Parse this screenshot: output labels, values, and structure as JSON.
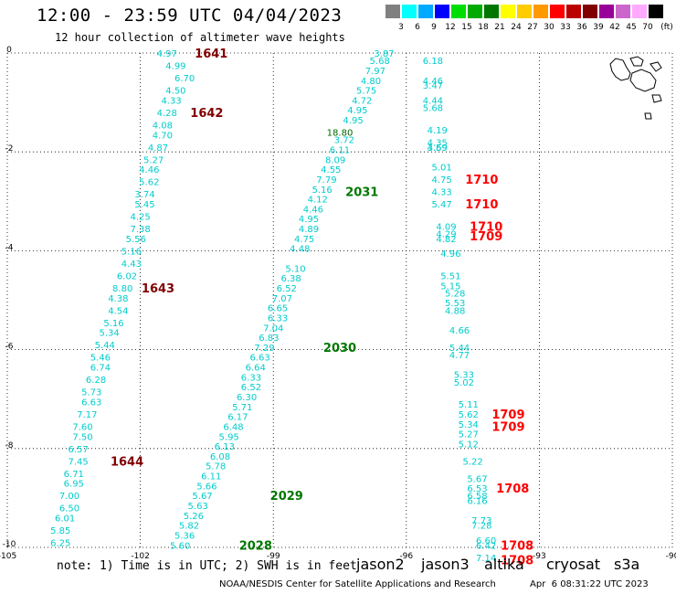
{
  "header": {
    "title": "12:00 - 23:59 UTC 04/04/2023",
    "subtitle": "12 hour collection of altimeter wave heights"
  },
  "legend": {
    "unit": "(ft)",
    "bins": [
      {
        "label": "3",
        "color": "#808080"
      },
      {
        "label": "6",
        "color": "#00ffff"
      },
      {
        "label": "9",
        "color": "#00aaff"
      },
      {
        "label": "12",
        "color": "#0000ff"
      },
      {
        "label": "15",
        "color": "#00dd00"
      },
      {
        "label": "18",
        "color": "#00aa00"
      },
      {
        "label": "21",
        "color": "#007700"
      },
      {
        "label": "24",
        "color": "#ffff00"
      },
      {
        "label": "27",
        "color": "#ffcc00"
      },
      {
        "label": "30",
        "color": "#ff9900"
      },
      {
        "label": "33",
        "color": "#ff0000"
      },
      {
        "label": "36",
        "color": "#bb0000"
      },
      {
        "label": "39",
        "color": "#800000"
      },
      {
        "label": "42",
        "color": "#990099"
      },
      {
        "label": "45",
        "color": "#cc66cc"
      },
      {
        "label": "70",
        "color": "#ffaaff"
      },
      {
        "label": "",
        "color": "#000000"
      }
    ]
  },
  "axes": {
    "x_ticks": [
      "-105",
      "-102",
      "-99",
      "-96",
      "-93",
      "-90"
    ],
    "y_ticks": [
      "0",
      "-2",
      "-4",
      "-6",
      "-8",
      "-10"
    ],
    "x_range": [
      -105,
      -90
    ],
    "y_range": [
      -10,
      0
    ]
  },
  "chart_data": {
    "type": "scatter",
    "value_color": "#00cccc",
    "tracks": [
      {
        "points": [
          [
            -101.4,
            0.0,
            "4.97"
          ],
          [
            -101.2,
            -0.25,
            "4.99"
          ],
          [
            -101.0,
            -0.5,
            "6.70"
          ],
          [
            -101.2,
            -0.75,
            "4.50"
          ],
          [
            -101.3,
            -0.95,
            "4.33"
          ],
          [
            -101.4,
            -1.2,
            "4.28"
          ],
          [
            -101.5,
            -1.45,
            "4.08"
          ],
          [
            -101.5,
            -1.65,
            "4.70"
          ],
          [
            -101.6,
            -1.9,
            "4.87"
          ],
          [
            -101.7,
            -2.15,
            "5.27"
          ],
          [
            -101.8,
            -2.35,
            "4.46"
          ],
          [
            -101.8,
            -2.6,
            "5.62"
          ],
          [
            -101.9,
            -2.85,
            "3.74"
          ],
          [
            -101.9,
            -3.05,
            "5.45"
          ],
          [
            -102.0,
            -3.3,
            "4.25"
          ],
          [
            -102.0,
            -3.55,
            "7.38"
          ],
          [
            -102.1,
            -3.75,
            "5.56"
          ],
          [
            -102.2,
            -4.0,
            "5.16"
          ],
          [
            -102.2,
            -4.25,
            "4.43"
          ],
          [
            -102.3,
            -4.5,
            "6.02"
          ],
          [
            -102.4,
            -4.75,
            "8.80"
          ],
          [
            -102.5,
            -4.95,
            "4.38"
          ],
          [
            -102.5,
            -5.2,
            "4.54"
          ],
          [
            -102.6,
            -5.45,
            "5.16"
          ],
          [
            -102.7,
            -5.65,
            "5.34"
          ],
          [
            -102.8,
            -5.9,
            "5.44"
          ],
          [
            -102.9,
            -6.15,
            "5.46"
          ],
          [
            -102.9,
            -6.35,
            "6.74"
          ],
          [
            -103.0,
            -6.6,
            "6.28"
          ],
          [
            -103.1,
            -6.85,
            "5.73"
          ],
          [
            -103.1,
            -7.05,
            "6.63"
          ],
          [
            -103.2,
            -7.3,
            "7.17"
          ],
          [
            -103.3,
            -7.55,
            "7.60"
          ],
          [
            -103.3,
            -7.75,
            "7.50"
          ],
          [
            -103.4,
            -8.0,
            "6.57"
          ],
          [
            -103.4,
            -8.25,
            "7.45"
          ],
          [
            -103.5,
            -8.5,
            "6.71"
          ],
          [
            -103.5,
            -8.7,
            "6.95"
          ],
          [
            -103.6,
            -8.95,
            "7.00"
          ],
          [
            -103.6,
            -9.2,
            "6.50"
          ],
          [
            -103.7,
            -9.4,
            "6.01"
          ],
          [
            -103.8,
            -9.65,
            "5.85"
          ],
          [
            -103.8,
            -9.9,
            "6.25"
          ]
        ]
      },
      {
        "points": [
          [
            -96.5,
            0.0,
            "3.87"
          ],
          [
            -96.6,
            -0.15,
            "5.68"
          ],
          [
            -96.7,
            -0.35,
            "7.97"
          ],
          [
            -96.8,
            -0.55,
            "4.80"
          ],
          [
            -96.9,
            -0.75,
            "5.75"
          ],
          [
            -97.0,
            -0.95,
            "4.72"
          ],
          [
            -97.1,
            -1.15,
            "4.95"
          ],
          [
            -97.2,
            -1.35,
            "4.95"
          ],
          [
            -97.4,
            -1.75,
            "3.72"
          ],
          [
            -97.5,
            -1.95,
            "6.11"
          ],
          [
            -97.6,
            -2.15,
            "8.09"
          ],
          [
            -97.7,
            -2.35,
            "4.55"
          ],
          [
            -97.8,
            -2.55,
            "7.79"
          ],
          [
            -97.9,
            -2.75,
            "5.16"
          ],
          [
            -98.0,
            -2.95,
            "4.12"
          ],
          [
            -98.1,
            -3.15,
            "4.46"
          ],
          [
            -98.2,
            -3.35,
            "4.95"
          ],
          [
            -98.2,
            -3.55,
            "4.89"
          ],
          [
            -98.3,
            -3.75,
            "4.75"
          ],
          [
            -98.4,
            -3.95,
            "4.48"
          ],
          [
            -98.5,
            -4.35,
            "5.10"
          ],
          [
            -98.6,
            -4.55,
            "6.38"
          ],
          [
            -98.7,
            -4.75,
            "6.52"
          ],
          [
            -98.8,
            -4.95,
            "7.07"
          ],
          [
            -98.9,
            -5.15,
            "6.65"
          ],
          [
            -98.9,
            -5.35,
            "6.33"
          ],
          [
            -99.0,
            -5.55,
            "7.04"
          ],
          [
            -99.1,
            -5.75,
            "6.83"
          ],
          [
            -99.2,
            -5.95,
            "7.29"
          ],
          [
            -99.3,
            -6.15,
            "6.63"
          ],
          [
            -99.4,
            -6.35,
            "6.64"
          ],
          [
            -99.5,
            -6.55,
            "6.33"
          ],
          [
            -99.5,
            -6.75,
            "6.52"
          ],
          [
            -99.6,
            -6.95,
            "6.30"
          ],
          [
            -99.7,
            -7.15,
            "5.71"
          ],
          [
            -99.8,
            -7.35,
            "6.17"
          ],
          [
            -99.9,
            -7.55,
            "6.48"
          ],
          [
            -100.0,
            -7.75,
            "5.95"
          ],
          [
            -100.1,
            -7.95,
            "6.13"
          ],
          [
            -100.2,
            -8.15,
            "6.08"
          ],
          [
            -100.3,
            -8.35,
            "5.78"
          ],
          [
            -100.4,
            -8.55,
            "6.11"
          ],
          [
            -100.5,
            -8.75,
            "5.66"
          ],
          [
            -100.6,
            -8.95,
            "5.67"
          ],
          [
            -100.7,
            -9.15,
            "5.63"
          ],
          [
            -100.8,
            -9.35,
            "5.26"
          ],
          [
            -100.9,
            -9.55,
            "5.82"
          ],
          [
            -101.0,
            -9.75,
            "5.36"
          ],
          [
            -101.1,
            -9.95,
            "5.60"
          ]
        ]
      },
      {
        "points": [
          [
            -95.4,
            -0.15,
            "6.18"
          ],
          [
            -95.4,
            -0.55,
            "4.46"
          ],
          [
            -95.4,
            -0.65,
            "3.47"
          ],
          [
            -95.4,
            -0.95,
            "4.44"
          ],
          [
            -95.4,
            -1.1,
            "5.68"
          ],
          [
            -95.3,
            -1.55,
            "4.19"
          ],
          [
            -95.3,
            -1.8,
            "4.35"
          ],
          [
            -95.3,
            -1.9,
            "4.69"
          ],
          [
            -95.3,
            -1.9,
            "3.59"
          ],
          [
            -95.2,
            -2.3,
            "5.01"
          ],
          [
            -95.2,
            -2.55,
            "4.75"
          ],
          [
            -95.2,
            -2.8,
            "4.33"
          ],
          [
            -95.2,
            -3.05,
            "5.47"
          ],
          [
            -95.1,
            -3.5,
            "4.09"
          ],
          [
            -95.1,
            -3.65,
            "4.29"
          ],
          [
            -95.1,
            -3.75,
            "4.82"
          ],
          [
            -95.0,
            -4.05,
            "4.96"
          ],
          [
            -95.0,
            -4.5,
            "5.51"
          ],
          [
            -95.0,
            -4.7,
            "5.15"
          ],
          [
            -94.9,
            -4.85,
            "5.28"
          ],
          [
            -94.9,
            -5.05,
            "5.53"
          ],
          [
            -94.9,
            -5.2,
            "4.88"
          ],
          [
            -94.8,
            -5.6,
            "4.66"
          ],
          [
            -94.8,
            -5.95,
            "5.44"
          ],
          [
            -94.8,
            -6.1,
            "4.77"
          ],
          [
            -94.7,
            -6.5,
            "5.33"
          ],
          [
            -94.7,
            -6.65,
            "5.02"
          ],
          [
            -94.6,
            -7.1,
            "5.11"
          ],
          [
            -94.6,
            -7.3,
            "5.62"
          ],
          [
            -94.6,
            -7.5,
            "5.34"
          ],
          [
            -94.6,
            -7.7,
            "5.27"
          ],
          [
            -94.6,
            -7.9,
            "5.12"
          ],
          [
            -94.5,
            -8.25,
            "5.22"
          ],
          [
            -94.4,
            -8.6,
            "5.67"
          ],
          [
            -94.4,
            -8.8,
            "6.53"
          ],
          [
            -94.4,
            -8.95,
            "6.58"
          ],
          [
            -94.4,
            -9.05,
            "6.16"
          ],
          [
            -94.3,
            -9.45,
            "7.73"
          ],
          [
            -94.3,
            -9.55,
            "7.28"
          ],
          [
            -94.2,
            -9.85,
            "6.60"
          ],
          [
            -94.2,
            -9.95,
            "6.42"
          ],
          [
            -94.2,
            -10.2,
            "7.14"
          ]
        ]
      }
    ],
    "extra_points": [
      [
        -97.5,
        -1.6,
        "18.80",
        "#006600"
      ]
    ],
    "pass_labels": [
      {
        "text": "1641",
        "lon": -100.4,
        "lat": 0.0,
        "color": "#800000"
      },
      {
        "text": "1642",
        "lon": -100.5,
        "lat": -1.2,
        "color": "#800000"
      },
      {
        "text": "1643",
        "lon": -101.6,
        "lat": -4.75,
        "color": "#800000"
      },
      {
        "text": "1644",
        "lon": -102.3,
        "lat": -8.25,
        "color": "#800000"
      },
      {
        "text": "2031",
        "lon": -97.0,
        "lat": -2.8,
        "color": "#007700"
      },
      {
        "text": "2030",
        "lon": -97.5,
        "lat": -5.95,
        "color": "#007700"
      },
      {
        "text": "2029",
        "lon": -98.7,
        "lat": -8.95,
        "color": "#007700"
      },
      {
        "text": "2028",
        "lon": -99.4,
        "lat": -9.95,
        "color": "#007700"
      },
      {
        "text": "1710",
        "lon": -94.3,
        "lat": -2.55,
        "color": "#ff0000"
      },
      {
        "text": "1710",
        "lon": -94.3,
        "lat": -3.05,
        "color": "#ff0000"
      },
      {
        "text": "1710",
        "lon": -94.2,
        "lat": -3.5,
        "color": "#ff0000"
      },
      {
        "text": "1709",
        "lon": -94.2,
        "lat": -3.7,
        "color": "#ff0000"
      },
      {
        "text": "1709",
        "lon": -93.7,
        "lat": -7.3,
        "color": "#ff0000"
      },
      {
        "text": "1709",
        "lon": -93.7,
        "lat": -7.55,
        "color": "#ff0000"
      },
      {
        "text": "1708",
        "lon": -93.6,
        "lat": -8.8,
        "color": "#ff0000"
      },
      {
        "text": "1708",
        "lon": -93.5,
        "lat": -9.95,
        "color": "#ff0000"
      },
      {
        "text": "1708",
        "lon": -93.5,
        "lat": -10.25,
        "color": "#ff0000"
      }
    ]
  },
  "footer": {
    "note": "note: 1) Time is in UTC; 2) SWH is in feet",
    "satellites": [
      {
        "name": "jason2",
        "color": "#0000ff"
      },
      {
        "name": "jason3",
        "color": "#009900"
      },
      {
        "name": "altika",
        "color": "#ff9900"
      },
      {
        "name": "cryosat",
        "color": "#ff0000"
      },
      {
        "name": "s3a",
        "color": "#800000"
      }
    ],
    "credit": "NOAA/NESDIS Center for Satellite Applications and Research",
    "timestamp": "Apr  6 08:31:22 UTC 2023"
  }
}
